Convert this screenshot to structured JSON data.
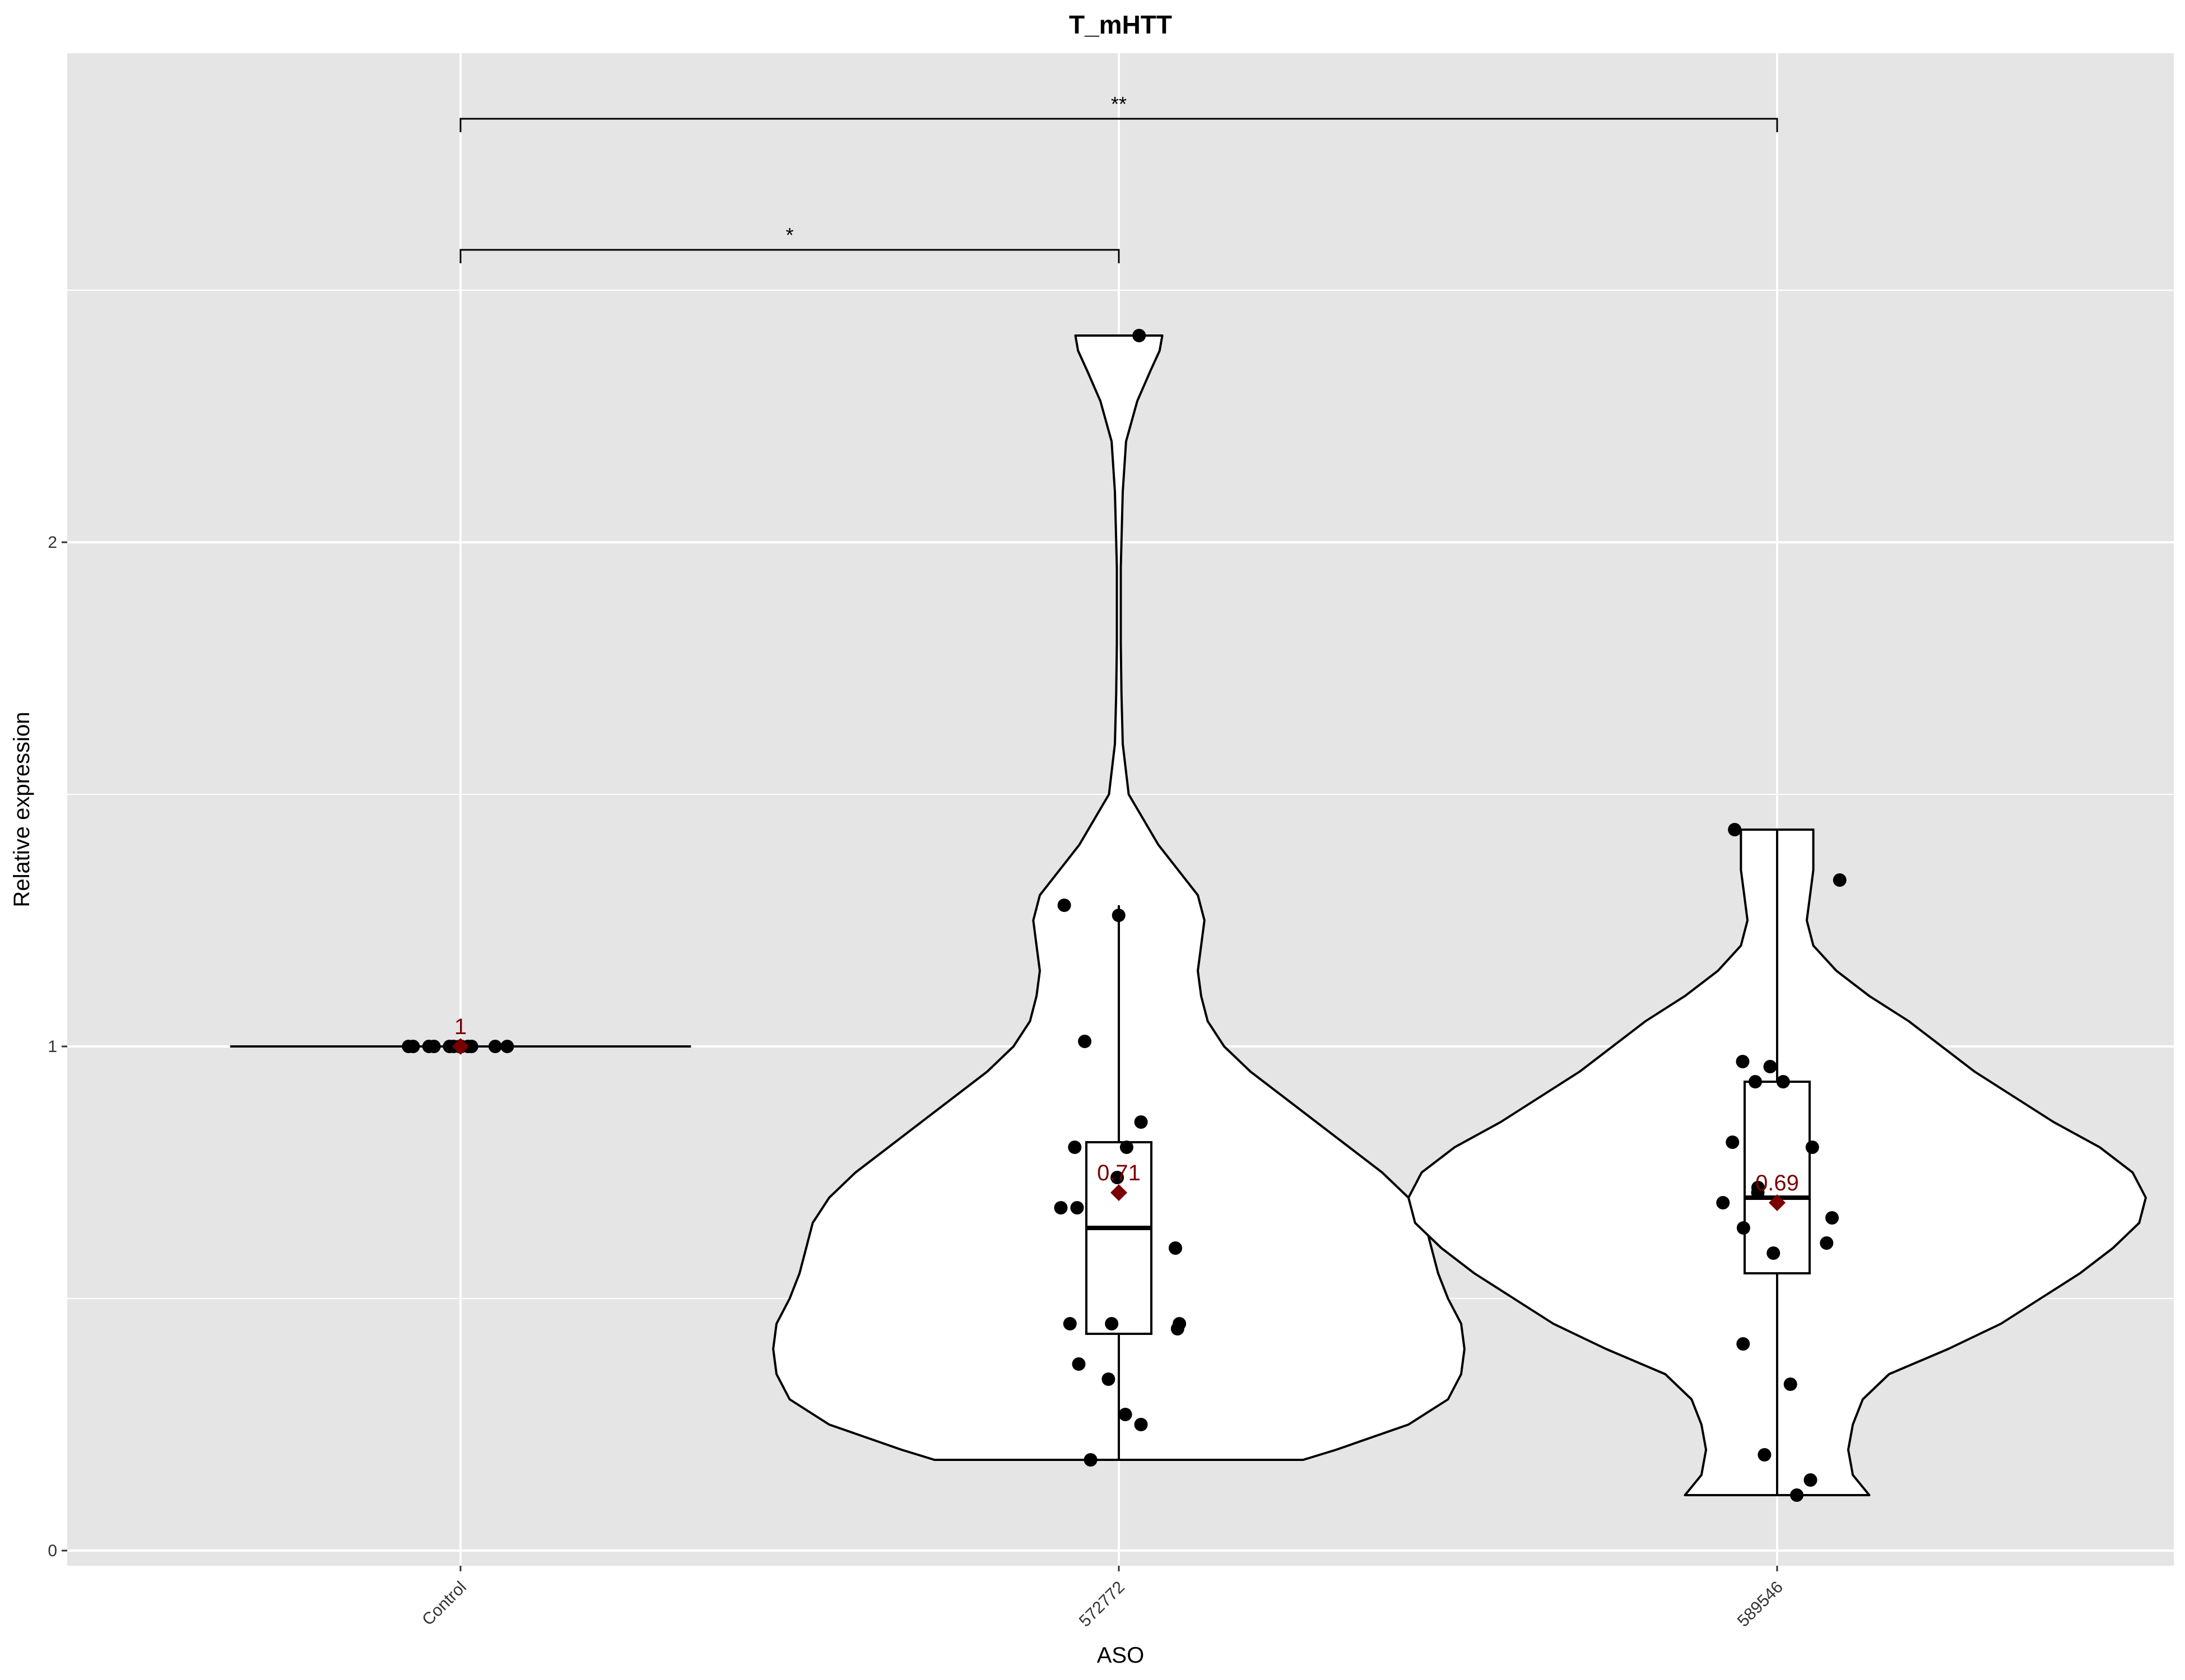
{
  "chart_data": {
    "type": "violin",
    "title": "T_mHTT",
    "xlabel": "ASO",
    "ylabel": "Relative expression",
    "categories": [
      "Control",
      "572772",
      "589546"
    ],
    "yticks": [
      "0",
      "1",
      "2"
    ],
    "ylim": [
      -0.03,
      2.97
    ],
    "grid": true,
    "groups": [
      {
        "name": "Control",
        "points": [
          1.0,
          1.0,
          1.0,
          1.0,
          1.0,
          1.0,
          1.0,
          1.0,
          1.0,
          1.0,
          1.0,
          1.0
        ],
        "box": {
          "min": 1.0,
          "q1": 1.0,
          "median": 1.0,
          "q3": 1.0,
          "max": 1.0
        },
        "mean": 1.0,
        "mean_label": "1",
        "violin": [
          [
            1.0,
            0.35
          ]
        ]
      },
      {
        "name": "572772",
        "points": [
          2.41,
          1.28,
          1.26,
          1.01,
          0.85,
          0.8,
          0.8,
          0.74,
          0.68,
          0.68,
          0.6,
          0.45,
          0.45,
          0.45,
          0.44,
          0.37,
          0.34,
          0.27,
          0.25,
          0.18
        ],
        "box": {
          "min": 0.18,
          "q1": 0.43,
          "median": 0.64,
          "q3": 0.81,
          "max": 1.28
        },
        "mean": 0.71,
        "mean_label": "0.71",
        "violin": [
          [
            0.18,
            0.28
          ],
          [
            0.2,
            0.33
          ],
          [
            0.25,
            0.44
          ],
          [
            0.3,
            0.5
          ],
          [
            0.35,
            0.52
          ],
          [
            0.4,
            0.525
          ],
          [
            0.45,
            0.52
          ],
          [
            0.5,
            0.5
          ],
          [
            0.55,
            0.485
          ],
          [
            0.6,
            0.475
          ],
          [
            0.65,
            0.465
          ],
          [
            0.7,
            0.44
          ],
          [
            0.75,
            0.4
          ],
          [
            0.8,
            0.35
          ],
          [
            0.85,
            0.3
          ],
          [
            0.9,
            0.25
          ],
          [
            0.95,
            0.2
          ],
          [
            1.0,
            0.16
          ],
          [
            1.05,
            0.135
          ],
          [
            1.1,
            0.125
          ],
          [
            1.15,
            0.12
          ],
          [
            1.2,
            0.125
          ],
          [
            1.25,
            0.13
          ],
          [
            1.3,
            0.12
          ],
          [
            1.35,
            0.09
          ],
          [
            1.4,
            0.06
          ],
          [
            1.5,
            0.015
          ],
          [
            1.6,
            0.006
          ],
          [
            1.7,
            0.004
          ],
          [
            1.8,
            0.003
          ],
          [
            1.95,
            0.003
          ],
          [
            2.1,
            0.006
          ],
          [
            2.2,
            0.011
          ],
          [
            2.28,
            0.028
          ],
          [
            2.34,
            0.048
          ],
          [
            2.38,
            0.062
          ],
          [
            2.41,
            0.066
          ]
        ]
      },
      {
        "name": "589546",
        "points": [
          1.43,
          1.33,
          0.96,
          0.97,
          0.93,
          0.93,
          0.81,
          0.8,
          0.72,
          0.71,
          0.69,
          0.66,
          0.64,
          0.61,
          0.59,
          0.41,
          0.33,
          0.19,
          0.14,
          0.11
        ],
        "box": {
          "min": 0.11,
          "q1": 0.55,
          "median": 0.7,
          "q3": 0.93,
          "max": 1.43
        },
        "mean": 0.69,
        "mean_label": "0.69",
        "violin": [
          [
            0.11,
            0.14
          ],
          [
            0.15,
            0.115
          ],
          [
            0.2,
            0.108
          ],
          [
            0.25,
            0.115
          ],
          [
            0.3,
            0.13
          ],
          [
            0.35,
            0.17
          ],
          [
            0.4,
            0.26
          ],
          [
            0.45,
            0.34
          ],
          [
            0.5,
            0.4
          ],
          [
            0.55,
            0.46
          ],
          [
            0.6,
            0.51
          ],
          [
            0.65,
            0.55
          ],
          [
            0.7,
            0.56
          ],
          [
            0.75,
            0.54
          ],
          [
            0.8,
            0.49
          ],
          [
            0.85,
            0.42
          ],
          [
            0.9,
            0.36
          ],
          [
            0.95,
            0.3
          ],
          [
            1.0,
            0.25
          ],
          [
            1.05,
            0.2
          ],
          [
            1.1,
            0.14
          ],
          [
            1.15,
            0.09
          ],
          [
            1.2,
            0.055
          ],
          [
            1.25,
            0.045
          ],
          [
            1.3,
            0.05
          ],
          [
            1.35,
            0.055
          ],
          [
            1.4,
            0.055
          ],
          [
            1.43,
            0.055
          ]
        ]
      }
    ],
    "significance": [
      {
        "from": "Control",
        "to": "572772",
        "label": "*",
        "y": 2.58
      },
      {
        "from": "Control",
        "to": "589546",
        "label": "**",
        "y": 2.84
      }
    ]
  }
}
